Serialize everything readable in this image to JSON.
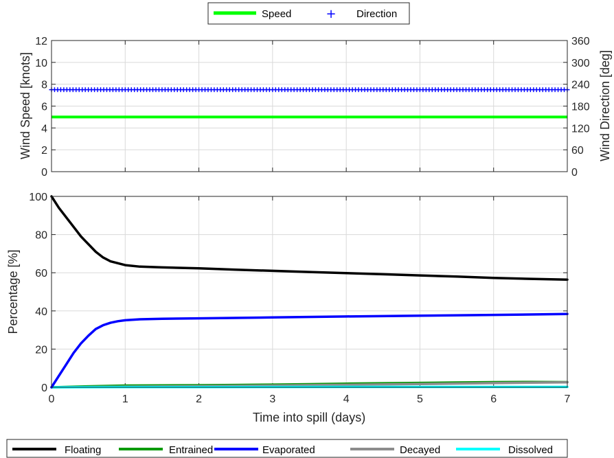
{
  "chart_data": [
    {
      "type": "line",
      "panel": "wind",
      "legend": {
        "placement": "top-center",
        "entries": [
          {
            "label": "Speed",
            "color": "#00ff00",
            "marker": "line"
          },
          {
            "label": "Direction",
            "color": "#0000ff",
            "marker": "+"
          }
        ]
      },
      "xlim": [
        0,
        7
      ],
      "xticks": [
        0,
        1,
        2,
        3,
        4,
        5,
        6,
        7
      ],
      "ylabel": "Wind Speed [knots]",
      "ylim": [
        0,
        12
      ],
      "yticks": [
        0,
        2,
        4,
        6,
        8,
        10,
        12
      ],
      "y2label": "Wind Direction [deg]",
      "y2lim": [
        0,
        360
      ],
      "y2ticks": [
        0,
        60,
        120,
        180,
        240,
        300,
        360
      ],
      "grid": true,
      "series": [
        {
          "name": "Speed",
          "color": "#00ff00",
          "axis": "left",
          "x": [
            0,
            7
          ],
          "y": [
            5,
            5
          ]
        },
        {
          "name": "Direction",
          "color": "#0000ff",
          "axis": "right",
          "marker": "+",
          "x_range": [
            0,
            7
          ],
          "constant": 225,
          "count": 169
        }
      ]
    },
    {
      "type": "line",
      "panel": "mass-balance",
      "xlabel": "Time into spill (days)",
      "xlim": [
        0,
        7
      ],
      "xticks": [
        0,
        1,
        2,
        3,
        4,
        5,
        6,
        7
      ],
      "ylabel": "Percentage  [%]",
      "ylim": [
        0,
        100
      ],
      "yticks": [
        0,
        20,
        40,
        60,
        80,
        100
      ],
      "grid": true,
      "legend": {
        "placement": "bottom",
        "entries": [
          {
            "label": "Floating",
            "color": "#000000"
          },
          {
            "label": "Entrained",
            "color": "#0a9a0a"
          },
          {
            "label": "Evaporated",
            "color": "#0000ff"
          },
          {
            "label": "Decayed",
            "color": "#8c8c8c"
          },
          {
            "label": "Dissolved",
            "color": "#00ffff"
          }
        ]
      },
      "series": [
        {
          "name": "Floating",
          "color": "#000000",
          "x": [
            0,
            0.1,
            0.2,
            0.3,
            0.4,
            0.5,
            0.6,
            0.7,
            0.8,
            0.9,
            1.0,
            1.2,
            1.5,
            2,
            2.5,
            3,
            3.5,
            4,
            4.5,
            5,
            5.5,
            6,
            6.5,
            7
          ],
          "y": [
            100,
            94,
            89,
            84,
            79,
            75,
            71,
            68,
            66,
            65,
            64,
            63.2,
            62.8,
            62.3,
            61.6,
            61,
            60.4,
            59.8,
            59.2,
            58.6,
            58,
            57.3,
            56.8,
            56.4
          ]
        },
        {
          "name": "Entrained",
          "color": "#0a9a0a",
          "x": [
            0,
            0.5,
            1,
            1.5,
            2,
            2.5,
            3,
            3.5,
            4,
            4.5,
            5,
            5.5,
            6,
            6.5,
            7
          ],
          "y": [
            0,
            0.5,
            0.9,
            1.0,
            1.1,
            1.2,
            1.4,
            1.6,
            1.9,
            2.1,
            2.3,
            2.5,
            2.7,
            2.8,
            2.7
          ]
        },
        {
          "name": "Evaporated",
          "color": "#0000ff",
          "x": [
            0,
            0.1,
            0.2,
            0.3,
            0.4,
            0.5,
            0.6,
            0.7,
            0.8,
            0.9,
            1.0,
            1.2,
            1.5,
            2,
            3,
            4,
            5,
            6,
            7
          ],
          "y": [
            0,
            6,
            12,
            18,
            23,
            27,
            30.5,
            32.5,
            33.8,
            34.6,
            35.1,
            35.6,
            35.9,
            36.1,
            36.6,
            37.1,
            37.5,
            37.9,
            38.4
          ]
        },
        {
          "name": "Decayed",
          "color": "#8c8c8c",
          "x": [
            0,
            1,
            2,
            3,
            4,
            5,
            6,
            7
          ],
          "y": [
            0,
            0.3,
            0.6,
            0.9,
            1.3,
            1.7,
            2.2,
            2.6
          ]
        },
        {
          "name": "Dissolved",
          "color": "#00ffff",
          "x": [
            0,
            1,
            2,
            3,
            4,
            5,
            6,
            7
          ],
          "y": [
            0,
            0.1,
            0.1,
            0.15,
            0.2,
            0.2,
            0.2,
            0.2
          ]
        }
      ]
    }
  ]
}
